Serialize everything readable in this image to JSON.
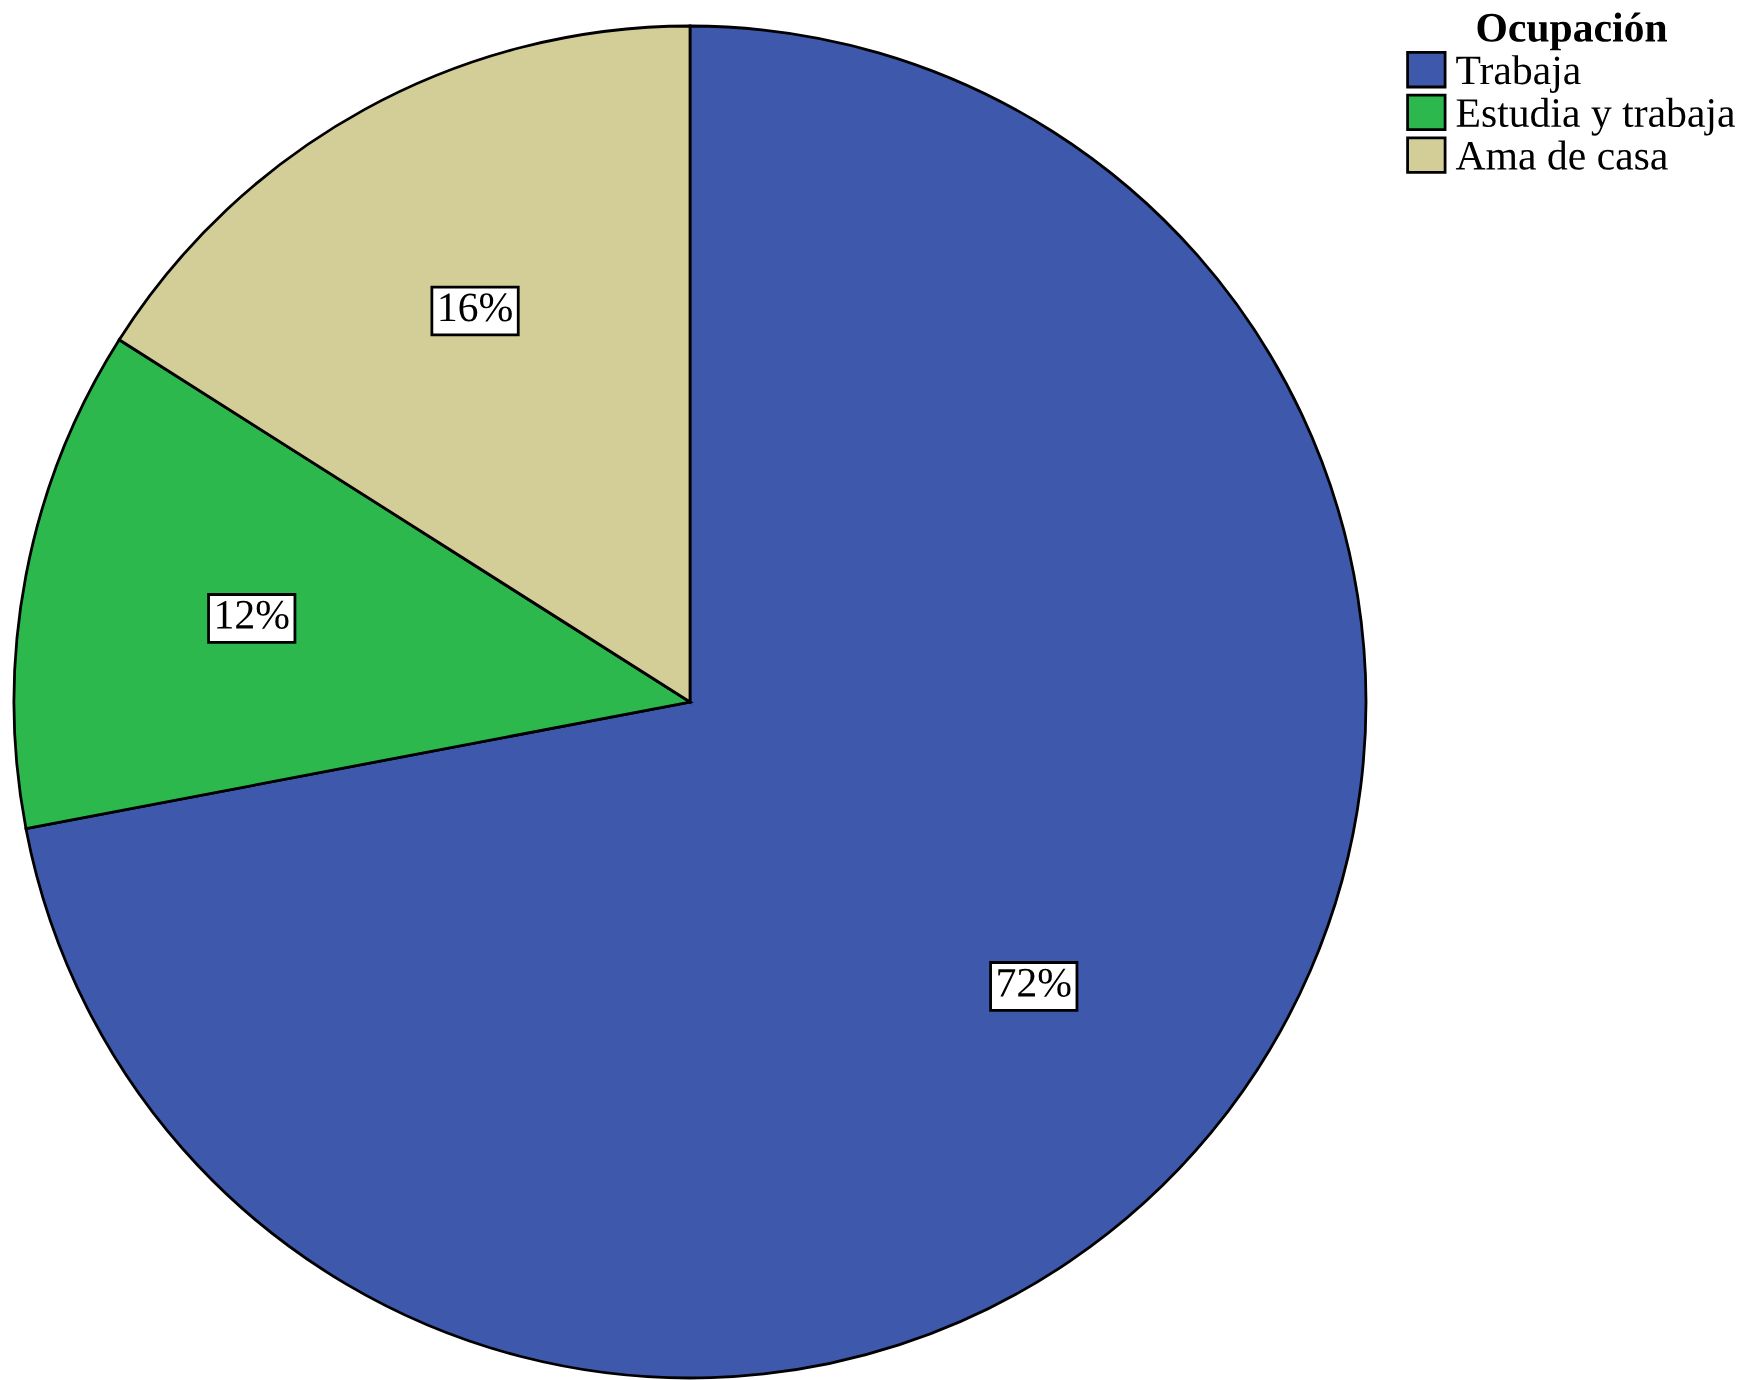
{
  "chart_data": {
    "type": "pie",
    "categories": [
      "Trabaja",
      "Estudia y trabaja",
      "Ama de casa"
    ],
    "values": [
      72,
      12,
      16
    ],
    "colors": [
      "#3e58ac",
      "#2db84d",
      "#d3ce97"
    ],
    "value_labels": [
      "72%",
      "12%",
      "16%"
    ],
    "legend_title": "Ocupación",
    "legend": "top right"
  }
}
